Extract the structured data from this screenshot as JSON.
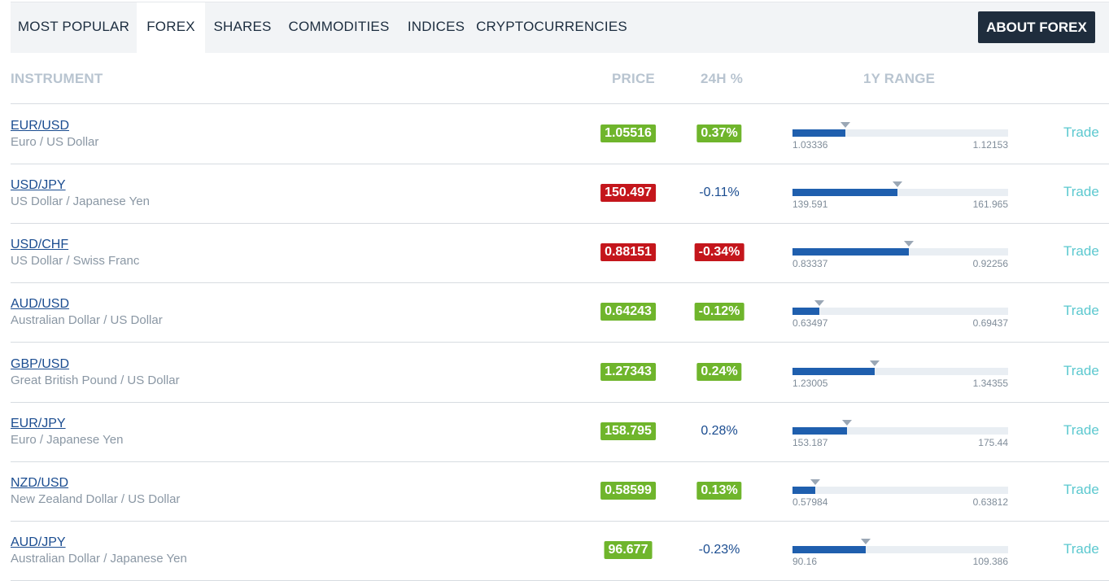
{
  "tabs": [
    {
      "label": "MOST POPULAR",
      "active": false
    },
    {
      "label": "FOREX",
      "active": true
    },
    {
      "label": "SHARES",
      "active": false
    },
    {
      "label": "COMMODITIES",
      "active": false
    },
    {
      "label": "INDICES",
      "active": false
    },
    {
      "label": "CRYPTOCURRENCIES",
      "active": false
    }
  ],
  "about_button": "ABOUT FOREX",
  "columns": {
    "instrument": "INSTRUMENT",
    "price": "PRICE",
    "change": "24H %",
    "range": "1Y RANGE"
  },
  "trade_label": "Trade",
  "colors": {
    "up": "#6fb52c",
    "down": "#c4161c",
    "neutral_text": "#1a4c90"
  },
  "rows": [
    {
      "symbol": "EUR/USD",
      "name": "Euro / US Dollar",
      "price": "1.05516",
      "price_dir": "up",
      "change": "0.37%",
      "change_dir": "up",
      "range_low": "1.03336",
      "range_high": "1.12153",
      "range_position": 0.247
    },
    {
      "symbol": "USD/JPY",
      "name": "US Dollar / Japanese Yen",
      "price": "150.497",
      "price_dir": "down",
      "change": "-0.11%",
      "change_dir": "neutral",
      "range_low": "139.591",
      "range_high": "161.965",
      "range_position": 0.487
    },
    {
      "symbol": "USD/CHF",
      "name": "US Dollar / Swiss Franc",
      "price": "0.88151",
      "price_dir": "down",
      "change": "-0.34%",
      "change_dir": "down",
      "range_low": "0.83337",
      "range_high": "0.92256",
      "range_position": 0.54
    },
    {
      "symbol": "AUD/USD",
      "name": "Australian Dollar / US Dollar",
      "price": "0.64243",
      "price_dir": "up",
      "change": "-0.12%",
      "change_dir": "up",
      "range_low": "0.63497",
      "range_high": "0.69437",
      "range_position": 0.126
    },
    {
      "symbol": "GBP/USD",
      "name": "Great British Pound / US Dollar",
      "price": "1.27343",
      "price_dir": "up",
      "change": "0.24%",
      "change_dir": "up",
      "range_low": "1.23005",
      "range_high": "1.34355",
      "range_position": 0.382
    },
    {
      "symbol": "EUR/JPY",
      "name": "Euro / Japanese Yen",
      "price": "158.795",
      "price_dir": "up",
      "change": "0.28%",
      "change_dir": "neutral",
      "range_low": "153.187",
      "range_high": "175.44",
      "range_position": 0.252
    },
    {
      "symbol": "NZD/USD",
      "name": "New Zealand Dollar / US Dollar",
      "price": "0.58599",
      "price_dir": "up",
      "change": "0.13%",
      "change_dir": "up",
      "range_low": "0.57984",
      "range_high": "0.63812",
      "range_position": 0.106
    },
    {
      "symbol": "AUD/JPY",
      "name": "Australian Dollar / Japanese Yen",
      "price": "96.677",
      "price_dir": "up",
      "change": "-0.23%",
      "change_dir": "neutral",
      "range_low": "90.16",
      "range_high": "109.386",
      "range_position": 0.339
    }
  ]
}
